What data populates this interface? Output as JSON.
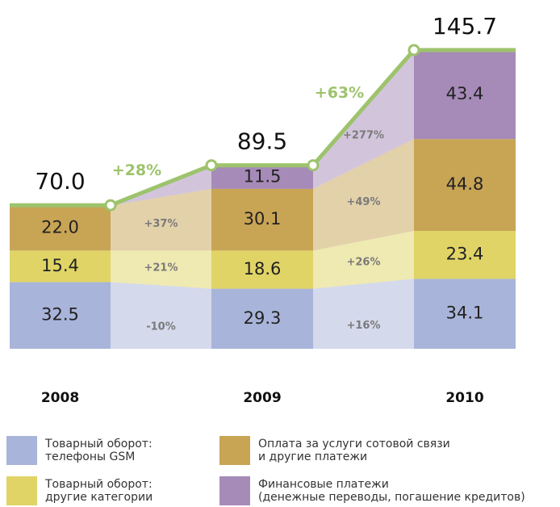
{
  "chart_data": {
    "type": "bar",
    "categories": [
      "2008",
      "2009",
      "2010"
    ],
    "series": [
      {
        "name": "Товарный оборот:\nтелефоны GSM",
        "color": "#a9b4da",
        "values": [
          32.5,
          29.3,
          34.1
        ],
        "value_labels": [
          "32.5",
          "29.3",
          "34.1"
        ],
        "growth": [
          "-10%",
          "+16%"
        ]
      },
      {
        "name": "Товарный оборот:\nдругие категории",
        "color": "#e0d466",
        "values": [
          15.4,
          18.6,
          23.4
        ],
        "value_labels": [
          "15.4",
          "18.6",
          "23.4"
        ],
        "growth": [
          "+21%",
          "+26%"
        ]
      },
      {
        "name": "Оплата за услуги сотовой связи\nи другие платежи",
        "color": "#c8a455",
        "values": [
          22,
          30.1,
          44.8
        ],
        "value_labels": [
          "22.0",
          "30.1",
          "44.8"
        ],
        "growth": [
          "+37%",
          "+49%"
        ]
      },
      {
        "name": "Финансовые платежи\n(денежные переводы, погашение кредитов)",
        "color": "#a68bb8",
        "values": [
          null,
          11.5,
          43.4
        ],
        "value_labels": [
          null,
          "11.5",
          "43.4"
        ],
        "growth": [
          null,
          "+277%"
        ]
      }
    ],
    "totals": {
      "color": "#9dc36c",
      "values": [
        70,
        89.5,
        145.7
      ],
      "value_labels": [
        "70.0",
        "89.5",
        "145.7"
      ],
      "growth": [
        "+28%",
        "+63%"
      ]
    }
  }
}
